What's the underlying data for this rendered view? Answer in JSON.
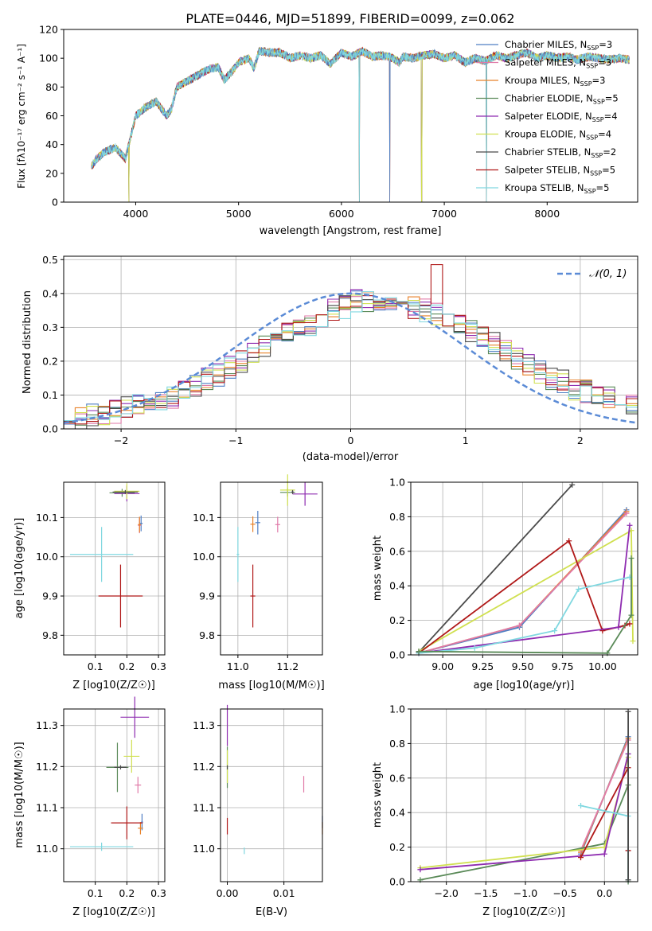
{
  "figure": {
    "colors": {
      "chabrier_miles": "#4f7fc4",
      "salpeter_miles": "#e07aa8",
      "kroupa_miles": "#e8822a",
      "chabrier_elodie": "#5a8a58",
      "salpeter_elodie": "#8e2bb0",
      "kroupa_elodie": "#d0e050",
      "chabrier_stelib": "#4a4a4a",
      "salpeter_stelib": "#b01818",
      "kroupa_stelib": "#80d8e0",
      "normal": "#5b8bd6"
    }
  },
  "chart_data": [
    {
      "id": "spectrum",
      "type": "line",
      "title": "PLATE=0446, MJD=51899, FIBERID=0099, z=0.062",
      "xlabel": "wavelength [Angstrom, rest frame]",
      "ylabel": "Flux [fλ10⁻¹⁷ erg cm⁻² s⁻¹ A⁻¹]",
      "xlim": [
        3300,
        8880
      ],
      "ylim": [
        0,
        120
      ],
      "xticks": [
        4000,
        5000,
        6000,
        7000,
        8000
      ],
      "yticks": [
        0,
        20,
        40,
        60,
        80,
        100,
        120
      ],
      "grid": false,
      "legend_position": "top-right",
      "legend": [
        "Chabrier MILES, N_SSP=3",
        "Salpeter MILES, N_SSP=3",
        "Kroupa MILES, N_SSP=3",
        "Chabrier ELODIE, N_SSP=5",
        "Salpeter ELODIE, N_SSP=4",
        "Kroupa ELODIE, N_SSP=4",
        "Chabrier STELIB, N_SSP=2",
        "Salpeter STELIB, N_SSP=5",
        "Kroupa STELIB, N_SSP=5"
      ],
      "legend_labels": [
        {
          "main": "Chabrier MILES, N",
          "sub": "SSP",
          "tail": "=3"
        },
        {
          "main": "Salpeter MILES, N",
          "sub": "SSP",
          "tail": "=3"
        },
        {
          "main": "Kroupa MILES, N",
          "sub": "SSP",
          "tail": "=3"
        },
        {
          "main": "Chabrier ELODIE, N",
          "sub": "SSP",
          "tail": "=5"
        },
        {
          "main": "Salpeter ELODIE, N",
          "sub": "SSP",
          "tail": "=4"
        },
        {
          "main": "Kroupa ELODIE, N",
          "sub": "SSP",
          "tail": "=4"
        },
        {
          "main": "Chabrier STELIB, N",
          "sub": "SSP",
          "tail": "=2"
        },
        {
          "main": "Salpeter STELIB, N",
          "sub": "SSP",
          "tail": "=5"
        },
        {
          "main": "Kroupa STELIB, N",
          "sub": "SSP",
          "tail": "=5"
        }
      ],
      "envelope": {
        "x": [
          3570,
          3620,
          3700,
          3800,
          3900,
          3950,
          4000,
          4100,
          4200,
          4300,
          4350,
          4400,
          4500,
          4600,
          4700,
          4800,
          4860,
          4950,
          5000,
          5100,
          5150,
          5200,
          5300,
          5400,
          5500,
          5600,
          5700,
          5800,
          5890,
          6000,
          6100,
          6200,
          6300,
          6400,
          6500,
          6563,
          6600,
          6700,
          6800,
          6900,
          7000,
          7100,
          7200,
          7300,
          7400,
          7500,
          7600,
          7700,
          7800,
          7900,
          8000,
          8100,
          8200,
          8300,
          8400,
          8500,
          8600,
          8700,
          8800
        ],
        "y": [
          25,
          30,
          35,
          38,
          30,
          45,
          60,
          66,
          70,
          60,
          65,
          80,
          84,
          88,
          92,
          94,
          85,
          92,
          97,
          100,
          93,
          105,
          104,
          104,
          100,
          102,
          100,
          102,
          96,
          104,
          101,
          105,
          101,
          102,
          100,
          97,
          101,
          100,
          102,
          103,
          100,
          102,
          97,
          100,
          98,
          102,
          100,
          102,
          104,
          100,
          102,
          100,
          101,
          99,
          101,
          100,
          99,
          100,
          99
        ]
      },
      "drops": [
        3933,
        6175,
        6470,
        6780,
        7410
      ]
    },
    {
      "id": "residuals",
      "type": "histogram",
      "xlabel": "(data-model)/error",
      "ylabel": "Normed distribution",
      "xlim": [
        -2.5,
        2.5
      ],
      "ylim": [
        0,
        0.51
      ],
      "xticks": [
        -2,
        -1,
        0,
        1,
        2
      ],
      "yticks": [
        0.0,
        0.1,
        0.2,
        0.3,
        0.4,
        0.5
      ],
      "grid": true,
      "legend_position": "top-right",
      "legend": [
        "𝒩(0, 1)"
      ],
      "bin_edges": [
        -2.5,
        -2.4,
        -2.3,
        -2.2,
        -2.1,
        -2.0,
        -1.9,
        -1.8,
        -1.7,
        -1.6,
        -1.5,
        -1.4,
        -1.3,
        -1.2,
        -1.1,
        -1.0,
        -0.9,
        -0.8,
        -0.7,
        -0.6,
        -0.5,
        -0.4,
        -0.3,
        -0.2,
        -0.1,
        0.0,
        0.1,
        0.2,
        0.3,
        0.4,
        0.5,
        0.6,
        0.7,
        0.8,
        0.9,
        1.0,
        1.1,
        1.2,
        1.3,
        1.4,
        1.5,
        1.6,
        1.7,
        1.8,
        1.9,
        2.0,
        2.1,
        2.2,
        2.3,
        2.4,
        2.5
      ],
      "base": [
        0.03,
        0.03,
        0.04,
        0.04,
        0.05,
        0.06,
        0.07,
        0.08,
        0.08,
        0.09,
        0.11,
        0.13,
        0.15,
        0.16,
        0.18,
        0.2,
        0.22,
        0.24,
        0.26,
        0.28,
        0.3,
        0.31,
        0.33,
        0.35,
        0.36,
        0.38,
        0.38,
        0.38,
        0.37,
        0.37,
        0.36,
        0.35,
        0.34,
        0.33,
        0.31,
        0.29,
        0.27,
        0.25,
        0.23,
        0.21,
        0.19,
        0.17,
        0.15,
        0.14,
        0.12,
        0.11,
        0.1,
        0.09,
        0.08,
        0.07
      ],
      "normal_curve": {
        "mu": 0,
        "sigma": 1,
        "peak": 0.4
      }
    },
    {
      "id": "age_vs_Z",
      "type": "errorbar",
      "xlabel": "Z [log10(Z/Z☉)]",
      "ylabel": "age [log10(age/yr)]",
      "xlim": [
        0.0,
        0.32
      ],
      "ylim": [
        9.75,
        10.19
      ],
      "xticks": [
        0.1,
        0.2,
        0.3
      ],
      "yticks": [
        9.8,
        9.9,
        10.0,
        10.1
      ],
      "grid": true,
      "points": [
        {
          "model": "chabrier_miles",
          "x": 0.245,
          "y": 10.085,
          "xerr": 0.005,
          "yerr": 0.02
        },
        {
          "model": "salpeter_miles",
          "x": 0.24,
          "y": 10.08,
          "xerr": 0.005,
          "yerr": 0.02
        },
        {
          "model": "kroupa_miles",
          "x": 0.24,
          "y": 10.082,
          "xerr": 0.005,
          "yerr": 0.02
        },
        {
          "model": "chabrier_elodie",
          "x": 0.185,
          "y": 10.163,
          "xerr": 0.04,
          "yerr": 0.01
        },
        {
          "model": "salpeter_elodie",
          "x": 0.2,
          "y": 10.161,
          "xerr": 0.04,
          "yerr": 0.02
        },
        {
          "model": "kroupa_elodie",
          "x": 0.2,
          "y": 10.167,
          "xerr": 0.04,
          "yerr": 0.02
        },
        {
          "model": "chabrier_stelib",
          "x": 0.195,
          "y": 10.165,
          "xerr": 0.04,
          "yerr": 0.005
        },
        {
          "model": "salpeter_stelib",
          "x": 0.18,
          "y": 9.9,
          "xerr": 0.07,
          "yerr": 0.08
        },
        {
          "model": "kroupa_stelib",
          "x": 0.12,
          "y": 10.006,
          "xerr": 0.1,
          "yerr": 0.07
        }
      ]
    },
    {
      "id": "age_vs_mass",
      "type": "errorbar",
      "xlabel": "mass [log10(M/M☉)]",
      "ylabel": "",
      "xlim": [
        10.93,
        11.34
      ],
      "ylim": [
        9.75,
        10.19
      ],
      "xticks": [
        11.0,
        11.2
      ],
      "yticks": [
        9.8,
        9.9,
        10.0,
        10.1
      ],
      "grid": true,
      "points": [
        {
          "model": "chabrier_miles",
          "x": 11.08,
          "y": 10.087,
          "xerr": 0.01,
          "yerr": 0.03
        },
        {
          "model": "salpeter_miles",
          "x": 11.16,
          "y": 10.082,
          "xerr": 0.01,
          "yerr": 0.02
        },
        {
          "model": "kroupa_miles",
          "x": 11.06,
          "y": 10.083,
          "xerr": 0.01,
          "yerr": 0.02
        },
        {
          "model": "chabrier_elodie",
          "x": 11.2,
          "y": 10.164,
          "xerr": 0.03,
          "yerr": 0.01
        },
        {
          "model": "salpeter_elodie",
          "x": 11.27,
          "y": 10.16,
          "xerr": 0.05,
          "yerr": 0.03
        },
        {
          "model": "kroupa_elodie",
          "x": 11.2,
          "y": 10.17,
          "xerr": 0.03,
          "yerr": 0.04
        },
        {
          "model": "chabrier_stelib",
          "x": 11.22,
          "y": 10.165,
          "xerr": 0.005,
          "yerr": 0.005
        },
        {
          "model": "salpeter_stelib",
          "x": 11.06,
          "y": 9.9,
          "xerr": 0.01,
          "yerr": 0.08
        },
        {
          "model": "kroupa_stelib",
          "x": 11.0,
          "y": 10.006,
          "xerr": 0.005,
          "yerr": 0.07
        }
      ]
    },
    {
      "id": "weight_vs_age",
      "type": "line",
      "xlabel": "age [log10(age/yr)]",
      "ylabel": "mass weight",
      "xlim": [
        8.8,
        10.22
      ],
      "ylim": [
        0,
        1
      ],
      "xticks": [
        9.0,
        9.25,
        9.5,
        9.75,
        10.0
      ],
      "yticks": [
        0.0,
        0.2,
        0.4,
        0.6,
        0.8,
        1.0
      ],
      "grid": true,
      "series": [
        {
          "model": "chabrier_stelib",
          "x": [
            8.85,
            9.81
          ],
          "y": [
            0.015,
            0.985
          ]
        },
        {
          "model": "chabrier_miles",
          "x": [
            8.85,
            9.48,
            10.15
          ],
          "y": [
            0.01,
            0.16,
            0.84
          ]
        },
        {
          "model": "kroupa_miles",
          "x": [
            8.85,
            9.48,
            10.15
          ],
          "y": [
            0.01,
            0.17,
            0.83
          ]
        },
        {
          "model": "salpeter_miles",
          "x": [
            8.85,
            9.48,
            10.15
          ],
          "y": [
            0.01,
            0.17,
            0.82
          ]
        },
        {
          "model": "kroupa_elodie",
          "x": [
            8.85,
            10.18,
            10.19
          ],
          "y": [
            0.02,
            0.72,
            0.08
          ]
        },
        {
          "model": "salpeter_stelib",
          "x": [
            8.85,
            9.79,
            10.0,
            10.14,
            10.17
          ],
          "y": [
            0.01,
            0.66,
            0.14,
            0.17,
            0.18
          ]
        },
        {
          "model": "salpeter_elodie",
          "x": [
            8.85,
            10.1,
            10.17
          ],
          "y": [
            0.01,
            0.16,
            0.75
          ]
        },
        {
          "model": "kroupa_stelib",
          "x": [
            8.85,
            9.2,
            9.7,
            9.85,
            10.17
          ],
          "y": [
            0.01,
            0.04,
            0.14,
            0.38,
            0.45
          ]
        },
        {
          "model": "chabrier_elodie",
          "x": [
            8.85,
            10.03,
            10.18,
            10.18
          ],
          "y": [
            0.02,
            0.01,
            0.23,
            0.56
          ]
        }
      ]
    },
    {
      "id": "mass_vs_Z",
      "type": "errorbar",
      "xlabel": "Z [log10(Z/Z☉)]",
      "ylabel": "mass [log10(M/M☉)]",
      "xlim": [
        0.0,
        0.32
      ],
      "ylim": [
        10.92,
        11.34
      ],
      "xticks": [
        0.1,
        0.2,
        0.3
      ],
      "yticks": [
        11.0,
        11.1,
        11.2,
        11.3
      ],
      "grid": true,
      "points": [
        {
          "model": "chabrier_miles",
          "x": 0.248,
          "y": 11.065,
          "xerr": 0.003,
          "yerr": 0.02
        },
        {
          "model": "salpeter_miles",
          "x": 0.235,
          "y": 11.155,
          "xerr": 0.01,
          "yerr": 0.02
        },
        {
          "model": "kroupa_miles",
          "x": 0.243,
          "y": 11.05,
          "xerr": 0.008,
          "yerr": 0.015
        },
        {
          "model": "chabrier_elodie",
          "x": 0.17,
          "y": 11.198,
          "xerr": 0.035,
          "yerr": 0.06
        },
        {
          "model": "salpeter_elodie",
          "x": 0.225,
          "y": 11.32,
          "xerr": 0.045,
          "yerr": 0.05
        },
        {
          "model": "kroupa_elodie",
          "x": 0.215,
          "y": 11.225,
          "xerr": 0.025,
          "yerr": 0.04
        },
        {
          "model": "chabrier_stelib",
          "x": 0.18,
          "y": 11.198,
          "xerr": 0.02,
          "yerr": 0.005
        },
        {
          "model": "salpeter_stelib",
          "x": 0.2,
          "y": 11.063,
          "xerr": 0.05,
          "yerr": 0.04
        },
        {
          "model": "kroupa_stelib",
          "x": 0.12,
          "y": 11.005,
          "xerr": 0.1,
          "yerr": 0.01
        }
      ]
    },
    {
      "id": "mass_vs_ebv",
      "type": "errorbar",
      "xlabel": "E(B-V)",
      "ylabel": "",
      "xlim": [
        -0.0012,
        0.0168
      ],
      "ylim": [
        10.92,
        11.34
      ],
      "xticks": [
        0.0,
        0.01
      ],
      "xticklabels": [
        "0.00",
        "0.01"
      ],
      "yticks": [
        11.0,
        11.1,
        11.2,
        11.3
      ],
      "grid": true,
      "points": [
        {
          "model": "chabrier_miles",
          "x": 0.0168,
          "y": 11.065,
          "xerr": 0,
          "yerr": 0.015
        },
        {
          "model": "salpeter_miles",
          "x": 0.0135,
          "y": 11.157,
          "xerr": 0,
          "yerr": 0.02
        },
        {
          "model": "kroupa_miles",
          "x": 0.0168,
          "y": 11.05,
          "xerr": 0,
          "yerr": 0.015
        },
        {
          "model": "chabrier_elodie",
          "x": 0.0,
          "y": 11.198,
          "xerr": 0,
          "yerr": 0.05
        },
        {
          "model": "salpeter_elodie",
          "x": 0.0,
          "y": 11.3,
          "xerr": 0,
          "yerr": 0.05
        },
        {
          "model": "kroupa_elodie",
          "x": 0.0,
          "y": 11.2,
          "xerr": 0,
          "yerr": 0.04
        },
        {
          "model": "chabrier_stelib",
          "x": 0.0,
          "y": 11.198,
          "xerr": 0,
          "yerr": 0.005
        },
        {
          "model": "salpeter_stelib",
          "x": 0.0,
          "y": 11.055,
          "xerr": 0,
          "yerr": 0.02
        },
        {
          "model": "kroupa_stelib",
          "x": 0.003,
          "y": 10.995,
          "xerr": 0,
          "yerr": 0.008
        }
      ]
    },
    {
      "id": "weight_vs_Z",
      "type": "line",
      "xlabel": "Z [log10(Z/Z☉)]",
      "ylabel": "mass weight",
      "xlim": [
        -2.45,
        0.42
      ],
      "ylim": [
        0,
        1
      ],
      "xticks": [
        -2.0,
        -1.5,
        -1.0,
        -0.5,
        0.0
      ],
      "yticks": [
        0.0,
        0.2,
        0.4,
        0.6,
        0.8,
        1.0
      ],
      "grid": true,
      "series": [
        {
          "model": "chabrier_miles",
          "x": [
            -0.3,
            0.3
          ],
          "y": [
            0.16,
            0.84
          ]
        },
        {
          "model": "kroupa_miles",
          "x": [
            -0.3,
            0.3
          ],
          "y": [
            0.17,
            0.83
          ]
        },
        {
          "model": "salpeter_miles",
          "x": [
            -0.3,
            0.3
          ],
          "y": [
            0.18,
            0.82
          ]
        },
        {
          "model": "chabrier_elodie",
          "x": [
            -2.33,
            0.0,
            0.3,
            0.3
          ],
          "y": [
            0.01,
            0.22,
            0.56,
            0.0
          ]
        },
        {
          "model": "kroupa_elodie",
          "x": [
            -2.33,
            0.0,
            0.3
          ],
          "y": [
            0.08,
            0.2,
            0.72
          ]
        },
        {
          "model": "salpeter_elodie",
          "x": [
            -2.33,
            0.0,
            0.3
          ],
          "y": [
            0.07,
            0.16,
            0.74
          ]
        },
        {
          "model": "salpeter_stelib",
          "x": [
            -0.3,
            0.3,
            0.3
          ],
          "y": [
            0.14,
            0.66,
            0.18
          ]
        },
        {
          "model": "kroupa_stelib",
          "x": [
            -0.3,
            0.3,
            0.3
          ],
          "y": [
            0.44,
            0.38,
            0.01
          ]
        },
        {
          "model": "chabrier_stelib",
          "x": [
            0.3,
            0.3
          ],
          "y": [
            0.01,
            0.985
          ]
        }
      ]
    }
  ]
}
